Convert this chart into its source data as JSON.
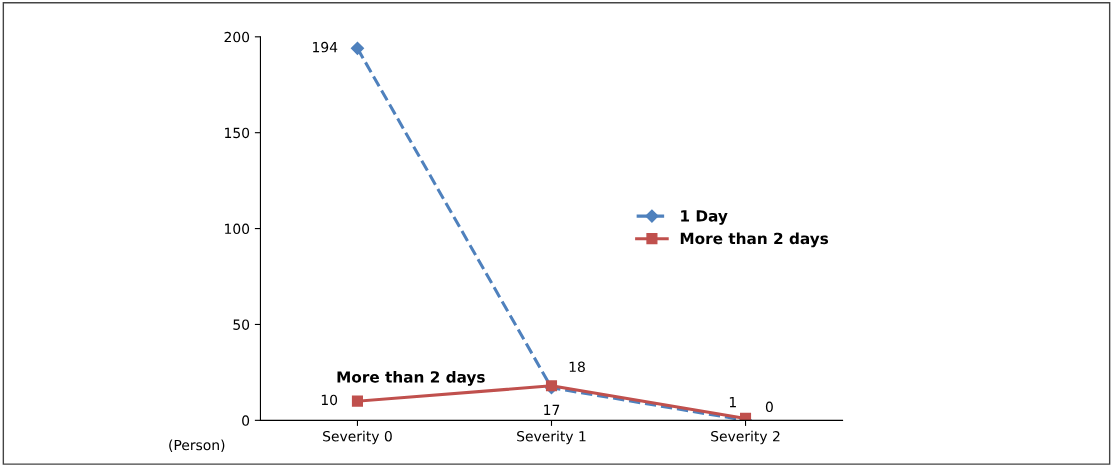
{
  "chart_data": {
    "type": "line",
    "categories": [
      "Severity 0",
      "Severity 1",
      "Severity 2"
    ],
    "series": [
      {
        "name": "1 Day",
        "color": "#4f81bd",
        "values": [
          194,
          17,
          0
        ],
        "line_style": "dashed",
        "marker": "diamond"
      },
      {
        "name": "More than 2 days",
        "color": "#c0504d",
        "values": [
          10,
          18,
          1
        ],
        "line_style": "solid",
        "marker": "square"
      }
    ],
    "ylim": [
      0,
      200
    ],
    "yticks": [
      0,
      50,
      100,
      150,
      200
    ],
    "grid": false,
    "legend": "center right",
    "data_labels": true,
    "annotations": [
      "(Person)",
      "More than 2 days"
    ]
  }
}
